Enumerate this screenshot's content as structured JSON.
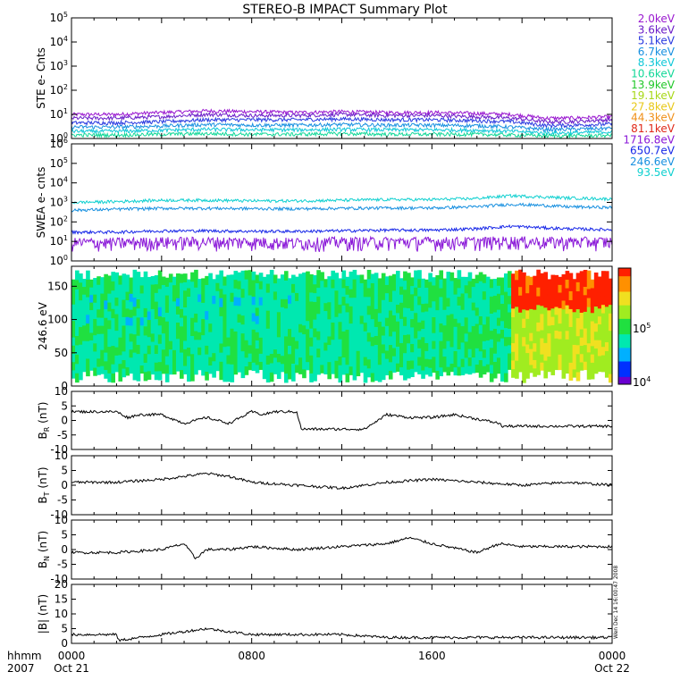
{
  "title": "STEREO-B IMPACT Summary Plot",
  "time_axis": {
    "row_label_1": "hhmm",
    "row_label_2": "2007",
    "ticks": [
      {
        "hour": 0,
        "label": "0000",
        "date": "Oct 21"
      },
      {
        "hour": 8,
        "label": "0800",
        "date": ""
      },
      {
        "hour": 16,
        "label": "1600",
        "date": ""
      },
      {
        "hour": 24,
        "label": "0000",
        "date": "Oct 22"
      }
    ],
    "range_hours": [
      0,
      24
    ]
  },
  "side_annotation": "Wen Dec 14 16:00:47 2008",
  "colorbar": {
    "labels": [
      {
        "text": "10",
        "exp": "5",
        "level": 5
      },
      {
        "text": "10",
        "exp": "4",
        "level": 4
      }
    ],
    "colors": [
      "#6a00d0",
      "#0030ff",
      "#00b0ff",
      "#00e8b0",
      "#20e040",
      "#a0ec20",
      "#f0e020",
      "#ff9000",
      "#ff2000"
    ]
  },
  "chart_data": [
    {
      "type": "line",
      "panel": "ste",
      "ylabel": "STE e- Cnts",
      "yscale": "log",
      "ylim": [
        1,
        100000
      ],
      "yticks": [
        {
          "base": "10",
          "exp": "0"
        },
        {
          "base": "10",
          "exp": "1"
        },
        {
          "base": "10",
          "exp": "2"
        },
        {
          "base": "10",
          "exp": "3"
        },
        {
          "base": "10",
          "exp": "4"
        },
        {
          "base": "10",
          "exp": "5"
        }
      ],
      "x_hours": [
        0,
        2,
        4,
        6,
        8,
        10,
        12,
        14,
        16,
        18,
        19.5,
        21,
        22,
        24
      ],
      "series": [
        {
          "name": "2.0keV",
          "color": "#9a18d0",
          "values": [
            10,
            10,
            12,
            14,
            13,
            12,
            13,
            12,
            12,
            11,
            10,
            7,
            7,
            8
          ]
        },
        {
          "name": "3.6keV",
          "color": "#6a1cc8",
          "values": [
            7,
            7,
            8,
            10,
            9,
            9,
            10,
            9,
            9,
            8,
            7,
            5,
            5,
            6
          ]
        },
        {
          "name": "5.1keV",
          "color": "#2a3ae0",
          "values": [
            4.5,
            4.5,
            5,
            6,
            6,
            6,
            6.5,
            6,
            6,
            5.5,
            5,
            3.5,
            3.5,
            4
          ]
        },
        {
          "name": "6.7keV",
          "color": "#1890e0",
          "values": [
            3,
            3,
            3.3,
            3.8,
            3.6,
            3.6,
            3.8,
            3.6,
            3.6,
            3.4,
            3,
            2.4,
            2.4,
            2.7
          ]
        },
        {
          "name": "8.3keV",
          "color": "#10c8d8",
          "values": [
            2,
            2,
            2.2,
            2.4,
            2.3,
            2.3,
            2.4,
            2.3,
            2.3,
            2.2,
            2,
            1.7,
            1.7,
            1.9
          ]
        },
        {
          "name": "10.6keV",
          "color": "#12d898",
          "values": [
            1.4,
            1.4,
            1.5,
            1.6,
            1.5,
            1.5,
            1.6,
            1.5,
            1.5,
            1.5,
            1.4,
            1.3,
            1.3,
            1.35
          ]
        },
        {
          "name": "13.9keV",
          "color": "#22c82a",
          "values": []
        },
        {
          "name": "19.1keV",
          "color": "#a8d818",
          "values": []
        },
        {
          "name": "27.8keV",
          "color": "#e8c818",
          "values": []
        },
        {
          "name": "44.3keV",
          "color": "#f09018",
          "values": []
        },
        {
          "name": "81.1keV",
          "color": "#e02818",
          "values": []
        }
      ]
    },
    {
      "type": "line",
      "panel": "swea",
      "ylabel": "SWEA e- cnts",
      "yscale": "log",
      "ylim": [
        1,
        1000000
      ],
      "yticks": [
        {
          "base": "10",
          "exp": "0"
        },
        {
          "base": "10",
          "exp": "1"
        },
        {
          "base": "10",
          "exp": "2"
        },
        {
          "base": "10",
          "exp": "3"
        },
        {
          "base": "10",
          "exp": "4"
        },
        {
          "base": "10",
          "exp": "5"
        },
        {
          "base": "10",
          "exp": "6"
        }
      ],
      "x_hours": [
        0,
        2,
        4,
        6,
        8,
        10,
        12,
        14,
        16,
        18,
        19.5,
        21,
        22,
        24
      ],
      "series": [
        {
          "name": "1716.8eV",
          "color": "#8a18d8",
          "values": [
            9,
            9,
            10,
            10,
            10,
            9,
            10,
            10,
            10,
            10,
            11,
            10,
            10,
            10
          ]
        },
        {
          "name": "650.7eV",
          "color": "#1828e8",
          "values": [
            30,
            30,
            35,
            35,
            33,
            33,
            35,
            38,
            38,
            45,
            60,
            50,
            45,
            40
          ]
        },
        {
          "name": "246.6eV",
          "color": "#1890e0",
          "values": [
            400,
            450,
            500,
            500,
            480,
            470,
            500,
            520,
            520,
            600,
            800,
            700,
            600,
            550
          ]
        },
        {
          "name": "93.5eV",
          "color": "#10d0d0",
          "values": [
            1000,
            1100,
            1300,
            1300,
            1200,
            1200,
            1300,
            1400,
            1400,
            1600,
            2200,
            1900,
            1700,
            1500
          ]
        }
      ]
    },
    {
      "type": "heatmap",
      "panel": "pad",
      "ylabel": "246.6 eV",
      "ylim": [
        0,
        180
      ],
      "yticks": [
        "0",
        "50",
        "100",
        "150"
      ],
      "x_hours": [
        0,
        2,
        4,
        6,
        8,
        10,
        12,
        14,
        16,
        18,
        19.5,
        21,
        22,
        24
      ],
      "colorscale_range": [
        10000,
        600000
      ]
    },
    {
      "type": "line",
      "panel": "br",
      "ylabel": "B",
      "ylabel_sub": "R",
      "unit": "(nT)",
      "ylim": [
        -10,
        10
      ],
      "yticks": [
        "-10",
        "-5",
        "0",
        "5",
        "10"
      ],
      "x_hours": [
        0,
        2,
        2.5,
        3,
        4,
        5,
        6,
        7,
        8,
        8.5,
        9,
        10,
        10.2,
        11,
        12,
        13,
        14,
        15,
        16,
        17,
        19,
        19.1,
        21,
        22,
        24
      ],
      "values": [
        3,
        3,
        1,
        2,
        2,
        -1,
        1,
        -1,
        3,
        2,
        3,
        3,
        -3,
        -3,
        -3,
        -3,
        2,
        1,
        1,
        2,
        -1,
        -2,
        -2,
        -2,
        -2
      ]
    },
    {
      "type": "line",
      "panel": "bt",
      "ylabel": "B",
      "ylabel_sub": "T",
      "unit": "(nT)",
      "ylim": [
        -10,
        10
      ],
      "yticks": [
        "-10",
        "-5",
        "0",
        "5",
        "10"
      ],
      "x_hours": [
        0,
        2,
        4,
        6,
        7,
        8,
        10,
        12,
        13,
        14,
        16,
        18,
        20,
        22,
        24
      ],
      "values": [
        1,
        1,
        2,
        4,
        3,
        1,
        0,
        -1,
        0,
        1,
        2,
        1,
        0,
        1,
        0
      ]
    },
    {
      "type": "line",
      "panel": "bn",
      "ylabel": "B",
      "ylabel_sub": "N",
      "unit": "(nT)",
      "ylim": [
        -10,
        10
      ],
      "yticks": [
        "-10",
        "-5",
        "0",
        "5",
        "10"
      ],
      "x_hours": [
        0,
        2,
        4,
        5,
        5.5,
        6,
        7,
        8,
        10,
        12,
        14,
        15,
        16,
        18,
        19,
        20,
        22,
        24
      ],
      "values": [
        -1,
        -1,
        0,
        2,
        -3,
        0,
        0,
        1,
        0,
        1,
        2,
        4,
        2,
        -1,
        2,
        1,
        1,
        1
      ]
    },
    {
      "type": "line",
      "panel": "bmag",
      "ylabel": "|B|",
      "unit": "(nT)",
      "ylim": [
        0,
        20
      ],
      "yticks": [
        "0",
        "5",
        "10",
        "15",
        "20"
      ],
      "x_hours": [
        0,
        2,
        2.1,
        4,
        6,
        7,
        8,
        10,
        12,
        14,
        16,
        18,
        20,
        22,
        24
      ],
      "values": [
        3,
        3,
        1,
        3,
        5,
        4,
        3,
        3,
        3,
        2,
        2,
        2,
        2,
        2,
        2
      ]
    }
  ]
}
